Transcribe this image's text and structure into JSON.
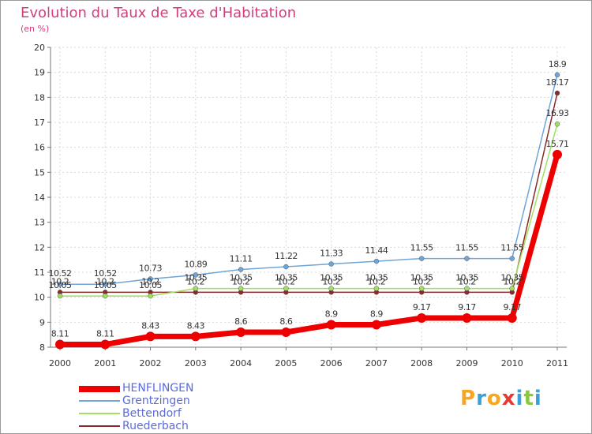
{
  "title": "Evolution du Taux de Taxe d'Habitation",
  "subtitle": "(en %)",
  "brand": [
    "P",
    "r",
    "o",
    "x",
    "i",
    "t",
    "i"
  ],
  "brand_colors": [
    "#f5a623",
    "#3aa0d8",
    "#f5a623",
    "#e8382f",
    "#3aa0d8",
    "#8dc63f",
    "#3aa0d8"
  ],
  "chart_data": {
    "type": "line",
    "categories": [
      "2000",
      "2001",
      "2002",
      "2003",
      "2004",
      "2005",
      "2006",
      "2007",
      "2008",
      "2009",
      "2010",
      "2011"
    ],
    "ylim": [
      8,
      20
    ],
    "yticks": [
      "8",
      "9",
      "10",
      "11",
      "12",
      "13",
      "14",
      "15",
      "16",
      "17",
      "18",
      "19",
      "20"
    ],
    "series": [
      {
        "name": "HENFLINGEN",
        "color": "#ee0000",
        "values": [
          8.11,
          8.11,
          8.43,
          8.43,
          8.6,
          8.6,
          8.9,
          8.9,
          9.17,
          9.17,
          9.17,
          15.71
        ],
        "labels": [
          "8.11",
          "8.11",
          "8.43",
          "8.43",
          "8.6",
          "8.6",
          "8.9",
          "8.9",
          "9.17",
          "9.17",
          "9.17",
          "15.71"
        ]
      },
      {
        "name": "Grentzingen",
        "color": "#6fa5d8",
        "values": [
          10.52,
          10.52,
          10.73,
          10.89,
          11.11,
          11.22,
          11.33,
          11.44,
          11.55,
          11.55,
          11.55,
          18.9
        ],
        "labels": [
          "10.52",
          "10.52",
          "10.73",
          "10.89",
          "11.11",
          "11.22",
          "11.33",
          "11.44",
          "11.55",
          "11.55",
          "11.55",
          "18.9"
        ]
      },
      {
        "name": "Bettendorf",
        "color": "#a0e060",
        "values": [
          10.05,
          10.05,
          10.05,
          10.35,
          10.35,
          10.35,
          10.35,
          10.35,
          10.35,
          10.35,
          10.35,
          16.93
        ],
        "labels": [
          "10.05",
          "10.05",
          "10.05",
          "10.35",
          "10.35",
          "10.35",
          "10.35",
          "10.35",
          "10.35",
          "10.35",
          "10.35",
          "16.93"
        ]
      },
      {
        "name": "Ruederbach",
        "color": "#8a2a2a",
        "values": [
          10.2,
          10.2,
          10.2,
          10.2,
          10.2,
          10.2,
          10.2,
          10.2,
          10.2,
          10.2,
          10.2,
          18.17
        ],
        "labels": [
          "10.2",
          "10.2",
          "10.2",
          "10.2",
          "10.2",
          "10.2",
          "10.2",
          "10.2",
          "10.2",
          "10.2",
          "10.2",
          "18.17"
        ]
      }
    ]
  }
}
